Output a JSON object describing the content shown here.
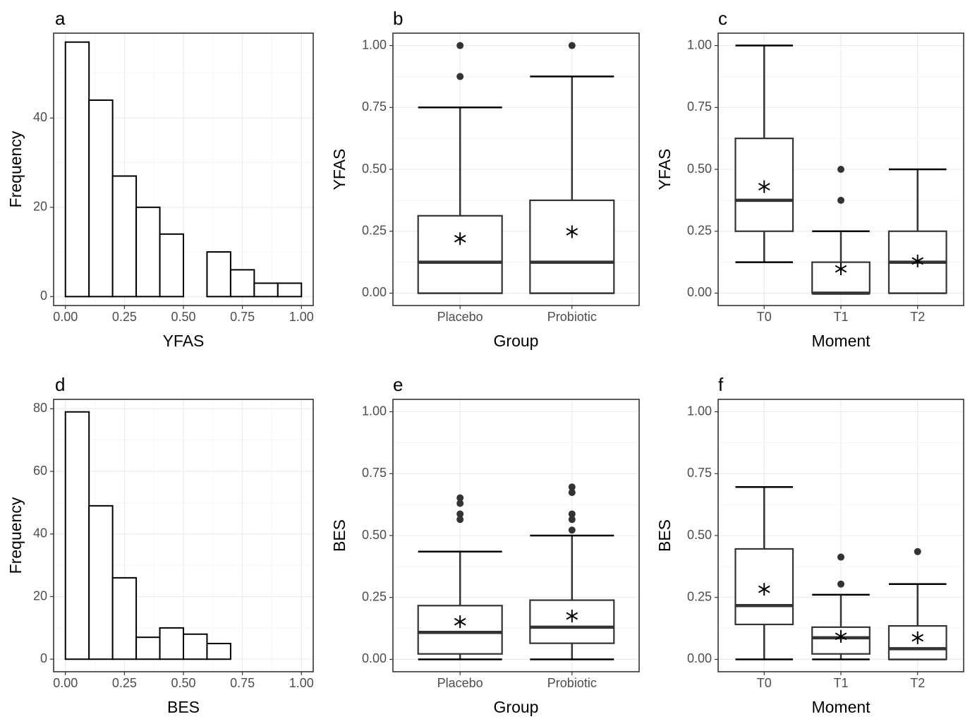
{
  "chart_data": [
    {
      "panel": "a",
      "type": "bar",
      "xlabel": "YFAS",
      "ylabel": "Frequency",
      "xlim": [
        -0.05,
        1.05
      ],
      "ylim": [
        -2,
        59
      ],
      "xticks": [
        0,
        0.25,
        0.5,
        0.75,
        1
      ],
      "xtick_labels": [
        "0.00",
        "0.25",
        "0.50",
        "0.75",
        "1.00"
      ],
      "yticks": [
        0,
        20,
        40
      ],
      "ytick_labels": [
        "0",
        "20",
        "40"
      ],
      "bin_width": 0.1,
      "bins": [
        {
          "x0": 0.0,
          "count": 57
        },
        {
          "x0": 0.1,
          "count": 44
        },
        {
          "x0": 0.2,
          "count": 27
        },
        {
          "x0": 0.3,
          "count": 20
        },
        {
          "x0": 0.4,
          "count": 14
        },
        {
          "x0": 0.5,
          "count": 0
        },
        {
          "x0": 0.6,
          "count": 10
        },
        {
          "x0": 0.7,
          "count": 6
        },
        {
          "x0": 0.8,
          "count": 3
        },
        {
          "x0": 0.9,
          "count": 3
        }
      ]
    },
    {
      "panel": "b",
      "type": "box",
      "xlabel": "Group",
      "ylabel": "YFAS",
      "ylim": [
        -0.05,
        1.05
      ],
      "yticks": [
        0,
        0.25,
        0.5,
        0.75,
        1
      ],
      "ytick_labels": [
        "0.00",
        "0.25",
        "0.50",
        "0.75",
        "1.00"
      ],
      "categories": [
        "Placebo",
        "Probiotic"
      ],
      "boxes": [
        {
          "lower_whisker": 0,
          "q1": 0,
          "median": 0.125,
          "q3": 0.3125,
          "upper_whisker": 0.75,
          "mean": 0.22,
          "outliers": [
            0.875,
            1.0
          ]
        },
        {
          "lower_whisker": 0,
          "q1": 0,
          "median": 0.125,
          "q3": 0.375,
          "upper_whisker": 0.875,
          "mean": 0.248,
          "outliers": [
            1.0
          ]
        }
      ]
    },
    {
      "panel": "c",
      "type": "box",
      "xlabel": "Moment",
      "ylabel": "YFAS",
      "ylim": [
        -0.05,
        1.05
      ],
      "yticks": [
        0,
        0.25,
        0.5,
        0.75,
        1
      ],
      "ytick_labels": [
        "0.00",
        "0.25",
        "0.50",
        "0.75",
        "1.00"
      ],
      "categories": [
        "T0",
        "T1",
        "T2"
      ],
      "boxes": [
        {
          "lower_whisker": 0.125,
          "q1": 0.25,
          "median": 0.375,
          "q3": 0.625,
          "upper_whisker": 1.0,
          "mean": 0.43,
          "outliers": []
        },
        {
          "lower_whisker": 0,
          "q1": 0,
          "median": 0,
          "q3": 0.125,
          "upper_whisker": 0.25,
          "mean": 0.098,
          "outliers": [
            0.375,
            0.5
          ]
        },
        {
          "lower_whisker": 0,
          "q1": 0,
          "median": 0.125,
          "q3": 0.25,
          "upper_whisker": 0.5,
          "mean": 0.13,
          "outliers": []
        }
      ]
    },
    {
      "panel": "d",
      "type": "bar",
      "xlabel": "BES",
      "ylabel": "Frequency",
      "xlim": [
        -0.05,
        1.05
      ],
      "ylim": [
        -4,
        83
      ],
      "xticks": [
        0,
        0.25,
        0.5,
        0.75,
        1
      ],
      "xtick_labels": [
        "0.00",
        "0.25",
        "0.50",
        "0.75",
        "1.00"
      ],
      "yticks": [
        0,
        20,
        40,
        60,
        80
      ],
      "ytick_labels": [
        "0",
        "20",
        "40",
        "60",
        "80"
      ],
      "bin_width": 0.1,
      "bins": [
        {
          "x0": 0.0,
          "count": 79
        },
        {
          "x0": 0.1,
          "count": 49
        },
        {
          "x0": 0.2,
          "count": 26
        },
        {
          "x0": 0.3,
          "count": 7
        },
        {
          "x0": 0.4,
          "count": 10
        },
        {
          "x0": 0.5,
          "count": 8
        },
        {
          "x0": 0.6,
          "count": 5
        }
      ]
    },
    {
      "panel": "e",
      "type": "box",
      "xlabel": "Group",
      "ylabel": "BES",
      "ylim": [
        -0.05,
        1.05
      ],
      "yticks": [
        0,
        0.25,
        0.5,
        0.75,
        1
      ],
      "ytick_labels": [
        "0.00",
        "0.25",
        "0.50",
        "0.75",
        "1.00"
      ],
      "categories": [
        "Placebo",
        "Probiotic"
      ],
      "boxes": [
        {
          "lower_whisker": 0,
          "q1": 0.022,
          "median": 0.109,
          "q3": 0.217,
          "upper_whisker": 0.435,
          "mean": 0.152,
          "outliers": [
            0.565,
            0.587,
            0.63,
            0.652
          ]
        },
        {
          "lower_whisker": 0,
          "q1": 0.065,
          "median": 0.13,
          "q3": 0.239,
          "upper_whisker": 0.5,
          "mean": 0.175,
          "outliers": [
            0.522,
            0.565,
            0.587,
            0.674,
            0.696
          ]
        }
      ]
    },
    {
      "panel": "f",
      "type": "box",
      "xlabel": "Moment",
      "ylabel": "BES",
      "ylim": [
        -0.05,
        1.05
      ],
      "yticks": [
        0,
        0.25,
        0.5,
        0.75,
        1
      ],
      "ytick_labels": [
        "0.00",
        "0.25",
        "0.50",
        "0.75",
        "1.00"
      ],
      "categories": [
        "T0",
        "T1",
        "T2"
      ],
      "boxes": [
        {
          "lower_whisker": 0,
          "q1": 0.141,
          "median": 0.217,
          "q3": 0.446,
          "upper_whisker": 0.696,
          "mean": 0.283,
          "outliers": []
        },
        {
          "lower_whisker": 0,
          "q1": 0.022,
          "median": 0.087,
          "q3": 0.13,
          "upper_whisker": 0.261,
          "mean": 0.093,
          "outliers": [
            0.304,
            0.413
          ]
        },
        {
          "lower_whisker": 0,
          "q1": 0,
          "median": 0.043,
          "q3": 0.135,
          "upper_whisker": 0.304,
          "mean": 0.087,
          "outliers": [
            0.435
          ]
        }
      ]
    }
  ]
}
